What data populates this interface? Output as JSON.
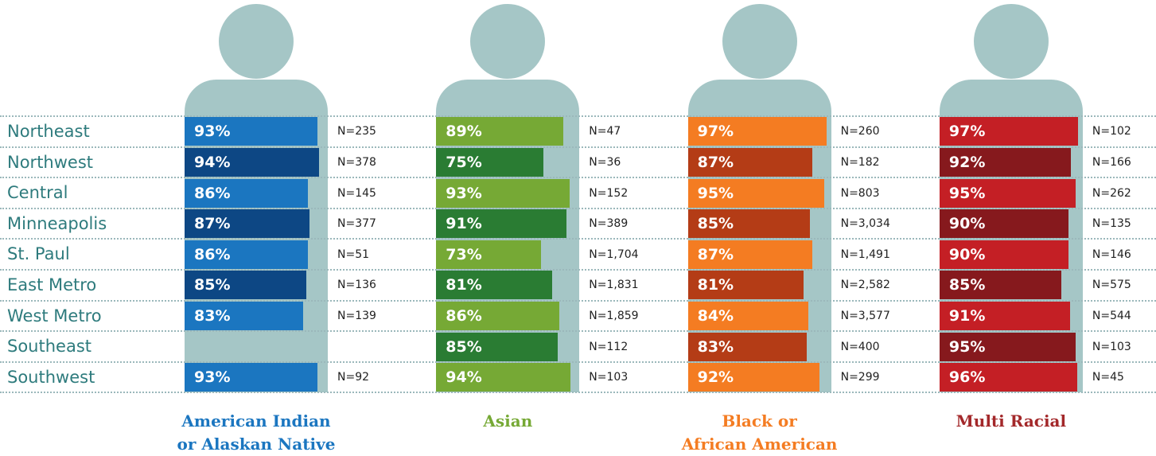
{
  "chart_data": {
    "type": "bar",
    "orientation": "horizontal",
    "xlim": [
      0,
      100
    ],
    "categories": [
      "Northeast",
      "Northwest",
      "Central",
      "Minneapolis",
      "St. Paul",
      "East Metro",
      "West Metro",
      "Southeast",
      "Southwest"
    ],
    "series": [
      {
        "name": "American Indian\nor Alaskan Native",
        "color": "#1b76c0",
        "colors": [
          "#1b76c0",
          "#0d4784"
        ],
        "values": [
          93,
          94,
          86,
          87,
          86,
          85,
          83,
          null,
          93
        ],
        "value_labels": [
          "93%",
          "94%",
          "86%",
          "87%",
          "86%",
          "85%",
          "83%",
          null,
          "93%"
        ],
        "n_labels": [
          "N=235",
          "N=378",
          "N=145",
          "N=377",
          "N=51",
          "N=136",
          "N=139",
          null,
          "N=92"
        ]
      },
      {
        "name": "Asian",
        "color": "#76a935",
        "colors": [
          "#76a935",
          "#2a7c33"
        ],
        "values": [
          89,
          75,
          93,
          91,
          73,
          81,
          86,
          85,
          94
        ],
        "value_labels": [
          "89%",
          "75%",
          "93%",
          "91%",
          "73%",
          "81%",
          "86%",
          "85%",
          "94%"
        ],
        "n_labels": [
          "N=47",
          "N=36",
          "N=152",
          "N=389",
          "N=1,704",
          "N=1,831",
          "N=1,859",
          "N=112",
          "N=103"
        ]
      },
      {
        "name": "Black or\nAfrican American",
        "color": "#f47c22",
        "colors": [
          "#f47c22",
          "#b43c16"
        ],
        "values": [
          97,
          87,
          95,
          85,
          87,
          81,
          84,
          83,
          92
        ],
        "value_labels": [
          "97%",
          "87%",
          "95%",
          "85%",
          "87%",
          "81%",
          "84%",
          "83%",
          "92%"
        ],
        "n_labels": [
          "N=260",
          "N=182",
          "N=803",
          "N=3,034",
          "N=1,491",
          "N=2,582",
          "N=3,577",
          "N=400",
          "N=299"
        ]
      },
      {
        "name": "Multi Racial",
        "color": "#a3282a",
        "colors": [
          "#c41f25",
          "#86191d"
        ],
        "values": [
          97,
          92,
          95,
          90,
          90,
          85,
          91,
          95,
          96
        ],
        "value_labels": [
          "97%",
          "92%",
          "95%",
          "90%",
          "90%",
          "85%",
          "91%",
          "95%",
          "96%"
        ],
        "n_labels": [
          "N=102",
          "N=166",
          "N=262",
          "N=135",
          "N=146",
          "N=575",
          "N=544",
          "N=103",
          "N=45"
        ]
      }
    ]
  }
}
